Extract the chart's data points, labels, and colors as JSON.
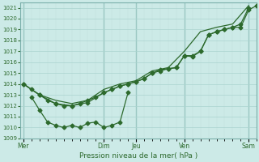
{
  "background_color": "#cceae7",
  "grid_color_major": "#aad4cf",
  "grid_color_minor": "#c0deda",
  "line_color": "#2d6a2d",
  "marker_color": "#2d6a2d",
  "title": "Pression niveau de la mer( hPa )",
  "ylim": [
    1009,
    1021.5
  ],
  "yticks": [
    1009,
    1010,
    1011,
    1012,
    1013,
    1014,
    1015,
    1016,
    1017,
    1018,
    1019,
    1020,
    1021
  ],
  "xtick_labels": [
    "Mer",
    "",
    "Dim",
    "Jeu",
    "",
    "Ven",
    "",
    "Sam"
  ],
  "xtick_pos": [
    0,
    3.5,
    5,
    7,
    8.5,
    10,
    12,
    14
  ],
  "vline_pos": [
    0,
    5,
    7,
    10,
    14
  ],
  "xlim": [
    -0.2,
    14.5
  ],
  "line1_x": [
    0,
    0.5,
    1,
    1.5,
    2,
    2.5,
    3,
    3.5,
    4,
    4.5,
    5,
    5.5,
    6,
    6.5,
    7,
    7.5,
    8,
    8.5,
    9,
    9.5,
    10,
    10.5,
    11,
    11.5,
    12,
    12.5,
    13,
    13.5,
    14,
    14.5
  ],
  "line1_y": [
    1014.0,
    1013.5,
    1013.0,
    1012.5,
    1012.2,
    1012.0,
    1012.0,
    1012.2,
    1012.5,
    1012.8,
    1013.2,
    1013.5,
    1013.8,
    1014.0,
    1014.2,
    1014.5,
    1015.0,
    1015.2,
    1015.4,
    1015.5,
    1016.6,
    1016.5,
    1017.0,
    1018.5,
    1018.8,
    1019.0,
    1019.2,
    1019.2,
    1020.8,
    1021.2
  ],
  "line2_x": [
    0,
    1,
    2,
    3,
    4,
    5,
    5.5,
    6,
    6.5,
    7,
    7.5,
    8,
    8.5,
    9,
    9.5,
    10,
    10.5,
    11,
    11.5,
    12,
    12.5,
    13,
    13.5,
    14
  ],
  "line2_y": [
    1014.0,
    1013.0,
    1012.2,
    1012.0,
    1012.3,
    1013.2,
    1013.5,
    1013.8,
    1014.0,
    1014.2,
    1014.5,
    1015.0,
    1015.3,
    1015.4,
    1015.5,
    1016.6,
    1016.6,
    1017.0,
    1018.5,
    1018.8,
    1019.0,
    1019.2,
    1019.5,
    1021.0
  ],
  "line3_x": [
    0,
    1,
    2,
    3,
    4,
    5,
    6,
    7,
    8,
    9,
    10,
    11,
    12,
    13,
    14
  ],
  "line3_y": [
    1014.0,
    1013.0,
    1012.5,
    1012.2,
    1012.5,
    1013.5,
    1014.0,
    1014.3,
    1015.2,
    1015.5,
    1017.0,
    1018.8,
    1019.2,
    1019.5,
    1021.2
  ],
  "line4_x": [
    0.5,
    1.0,
    1.5,
    2.0,
    2.5,
    3.0,
    3.5,
    4.0,
    4.5,
    5.0,
    5.5,
    6.0,
    6.5
  ],
  "line4_y": [
    1012.8,
    1011.6,
    1010.5,
    1010.2,
    1010.0,
    1010.2,
    1010.0,
    1010.4,
    1010.5,
    1010.0,
    1010.2,
    1010.5,
    1013.2
  ]
}
